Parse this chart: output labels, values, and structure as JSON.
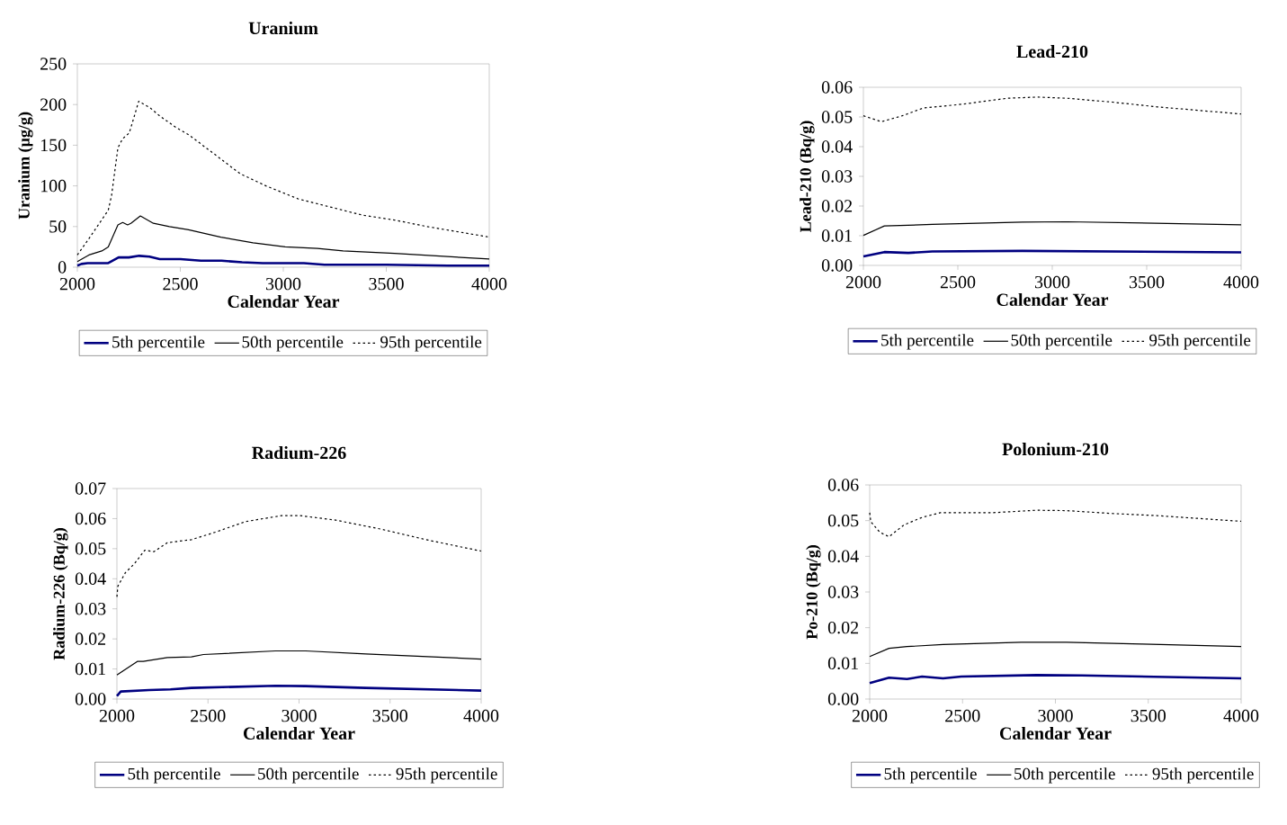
{
  "chart_data": [
    {
      "type": "line",
      "title": "Uranium",
      "xlabel": "Calendar Year",
      "ylabel": "Uranium (µg/g)",
      "xlim": [
        2000,
        4000
      ],
      "xticks": [
        2000,
        2500,
        3000,
        3500,
        4000
      ],
      "ylim": [
        0,
        250
      ],
      "yticks": [
        0,
        50,
        100,
        150,
        200,
        250
      ],
      "legend": "bottom",
      "series": [
        {
          "name": "5th percentile",
          "color": "#000080",
          "line_style": "solid",
          "x": [
            2000,
            2020,
            2050,
            2150,
            2200,
            2250,
            2300,
            2350,
            2400,
            2500,
            2600,
            2700,
            2800,
            2900,
            3000,
            3100,
            3200,
            3500,
            3800,
            4000
          ],
          "values": [
            2,
            4,
            5,
            5,
            12,
            12,
            14,
            13,
            10,
            10,
            8,
            8,
            6,
            5,
            5,
            5,
            3,
            3,
            2,
            2
          ]
        },
        {
          "name": "50th percentile",
          "color": "#000000",
          "line_style": "solid",
          "x": [
            2000,
            2056,
            2119,
            2150,
            2197,
            2220,
            2244,
            2260,
            2306,
            2369,
            2447,
            2540,
            2697,
            2853,
            3009,
            3166,
            3290,
            3540,
            4000
          ],
          "values": [
            7,
            15,
            20,
            25,
            52,
            55,
            52,
            54,
            63,
            54,
            50,
            46,
            37,
            30,
            25,
            23,
            20,
            17,
            10
          ]
        },
        {
          "name": "95th percentile",
          "color": "#000000",
          "line_style": "dotted",
          "x": [
            2000,
            2056,
            2150,
            2166,
            2197,
            2220,
            2252,
            2298,
            2353,
            2400,
            2478,
            2540,
            2697,
            2790,
            2916,
            3072,
            3228,
            3384,
            3540,
            3697,
            4000
          ],
          "values": [
            15,
            35,
            70,
            88,
            147,
            158,
            165,
            204,
            196,
            186,
            172,
            163,
            133,
            115,
            100,
            84,
            74,
            64,
            58,
            50,
            37
          ]
        }
      ]
    },
    {
      "type": "line",
      "title": "Lead-210",
      "xlabel": "Calendar Year",
      "ylabel": "Lead-210 (Bq/g)",
      "xlim": [
        2000,
        4000
      ],
      "xticks": [
        2000,
        2500,
        3000,
        3500,
        4000
      ],
      "ylim": [
        0,
        0.06
      ],
      "yticks": [
        {
          "value": 0,
          "label": "0.00"
        },
        {
          "value": 0.01,
          "label": "0.01"
        },
        {
          "value": 0.02,
          "label": "0.02"
        },
        {
          "value": 0.03,
          "label": "0.03"
        },
        {
          "value": 0.04,
          "label": "0.04"
        },
        {
          "value": 0.05,
          "label": "0.05"
        },
        {
          "value": 0.06,
          "label": "0.06"
        }
      ],
      "legend": "bottom",
      "series": [
        {
          "name": "5th percentile",
          "color": "#000080",
          "line_style": "solid",
          "x": [
            2000,
            2111,
            2238,
            2365,
            2841,
            4000
          ],
          "values": [
            0.003,
            0.0045,
            0.0042,
            0.0047,
            0.0049,
            0.0044
          ]
        },
        {
          "name": "50th percentile",
          "color": "#000000",
          "line_style": "solid",
          "x": [
            2000,
            2111,
            2365,
            2841,
            3079,
            4000
          ],
          "values": [
            0.0101,
            0.0133,
            0.0138,
            0.0146,
            0.0147,
            0.0137
          ]
        },
        {
          "name": "95th percentile",
          "color": "#000000",
          "line_style": "dotted",
          "x": [
            2000,
            2095,
            2206,
            2317,
            2524,
            2762,
            2921,
            3079,
            3317,
            3556,
            4000
          ],
          "values": [
            0.0504,
            0.0484,
            0.0504,
            0.053,
            0.0543,
            0.0563,
            0.0567,
            0.0563,
            0.055,
            0.0534,
            0.051
          ]
        }
      ]
    },
    {
      "type": "line",
      "title": "Radium-226",
      "xlabel": "Calendar Year",
      "ylabel": "Radium-226 (Bq/g)",
      "xlim": [
        2000,
        4000
      ],
      "xticks": [
        2000,
        2500,
        3000,
        3500,
        4000
      ],
      "ylim": [
        0,
        0.07
      ],
      "yticks": [
        {
          "value": 0,
          "label": "0.00"
        },
        {
          "value": 0.01,
          "label": "0.01"
        },
        {
          "value": 0.02,
          "label": "0.02"
        },
        {
          "value": 0.03,
          "label": "0.03"
        },
        {
          "value": 0.04,
          "label": "0.04"
        },
        {
          "value": 0.05,
          "label": "0.05"
        },
        {
          "value": 0.06,
          "label": "0.06"
        },
        {
          "value": 0.07,
          "label": "0.07"
        }
      ],
      "legend": "bottom",
      "series": [
        {
          "name": "5th percentile",
          "color": "#000080",
          "line_style": "solid",
          "x": [
            2000,
            2021,
            2178,
            2294,
            2409,
            2871,
            3036,
            3366,
            4000
          ],
          "values": [
            0.001,
            0.0025,
            0.003,
            0.0032,
            0.0037,
            0.0044,
            0.0043,
            0.0037,
            0.0028
          ]
        },
        {
          "name": "50th percentile",
          "color": "#000000",
          "line_style": "solid",
          "x": [
            2000,
            2112,
            2145,
            2277,
            2409,
            2475,
            2871,
            3036,
            3366,
            4000
          ],
          "values": [
            0.008,
            0.0125,
            0.0125,
            0.0138,
            0.014,
            0.0148,
            0.016,
            0.016,
            0.015,
            0.0133
          ]
        },
        {
          "name": "95th percentile",
          "color": "#000000",
          "line_style": "dotted",
          "x": [
            2000,
            2005,
            2046,
            2096,
            2153,
            2203,
            2277,
            2409,
            2541,
            2706,
            2904,
            3003,
            3201,
            3449,
            3696,
            4000
          ],
          "values": [
            0.034,
            0.0375,
            0.042,
            0.045,
            0.0495,
            0.049,
            0.052,
            0.053,
            0.0555,
            0.059,
            0.061,
            0.061,
            0.0595,
            0.0565,
            0.053,
            0.0492
          ]
        }
      ]
    },
    {
      "type": "line",
      "title": "Polonium-210",
      "xlabel": "Calendar Year",
      "ylabel": "Po-210 (Bq/g)",
      "xlim": [
        2000,
        4000
      ],
      "xticks": [
        2000,
        2500,
        3000,
        3500,
        4000
      ],
      "ylim": [
        0,
        0.06
      ],
      "yticks": [
        {
          "value": 0,
          "label": "0.00"
        },
        {
          "value": 0.01,
          "label": "0.01"
        },
        {
          "value": 0.02,
          "label": "0.02"
        },
        {
          "value": 0.03,
          "label": "0.03"
        },
        {
          "value": 0.04,
          "label": "0.04"
        },
        {
          "value": 0.05,
          "label": "0.05"
        },
        {
          "value": 0.06,
          "label": "0.06"
        }
      ],
      "legend": "bottom",
      "series": [
        {
          "name": "5th percentile",
          "color": "#000080",
          "line_style": "solid",
          "x": [
            2000,
            2104,
            2201,
            2282,
            2395,
            2493,
            2898,
            3141,
            4000
          ],
          "values": [
            0.0045,
            0.006,
            0.0056,
            0.0063,
            0.0058,
            0.0063,
            0.0067,
            0.0066,
            0.0058
          ]
        },
        {
          "name": "50th percentile",
          "color": "#000000",
          "line_style": "solid",
          "x": [
            2000,
            2104,
            2201,
            2395,
            2817,
            3060,
            3465,
            4000
          ],
          "values": [
            0.0119,
            0.0142,
            0.0147,
            0.0153,
            0.0159,
            0.0159,
            0.0154,
            0.0147
          ]
        },
        {
          "name": "95th percentile",
          "color": "#000000",
          "line_style": "dotted",
          "x": [
            2000,
            2006,
            2055,
            2104,
            2185,
            2282,
            2379,
            2655,
            2898,
            3060,
            3303,
            3546,
            4000
          ],
          "values": [
            0.0522,
            0.0497,
            0.0467,
            0.0455,
            0.0488,
            0.0509,
            0.0522,
            0.0522,
            0.0529,
            0.0528,
            0.052,
            0.0514,
            0.0498
          ]
        }
      ]
    }
  ]
}
